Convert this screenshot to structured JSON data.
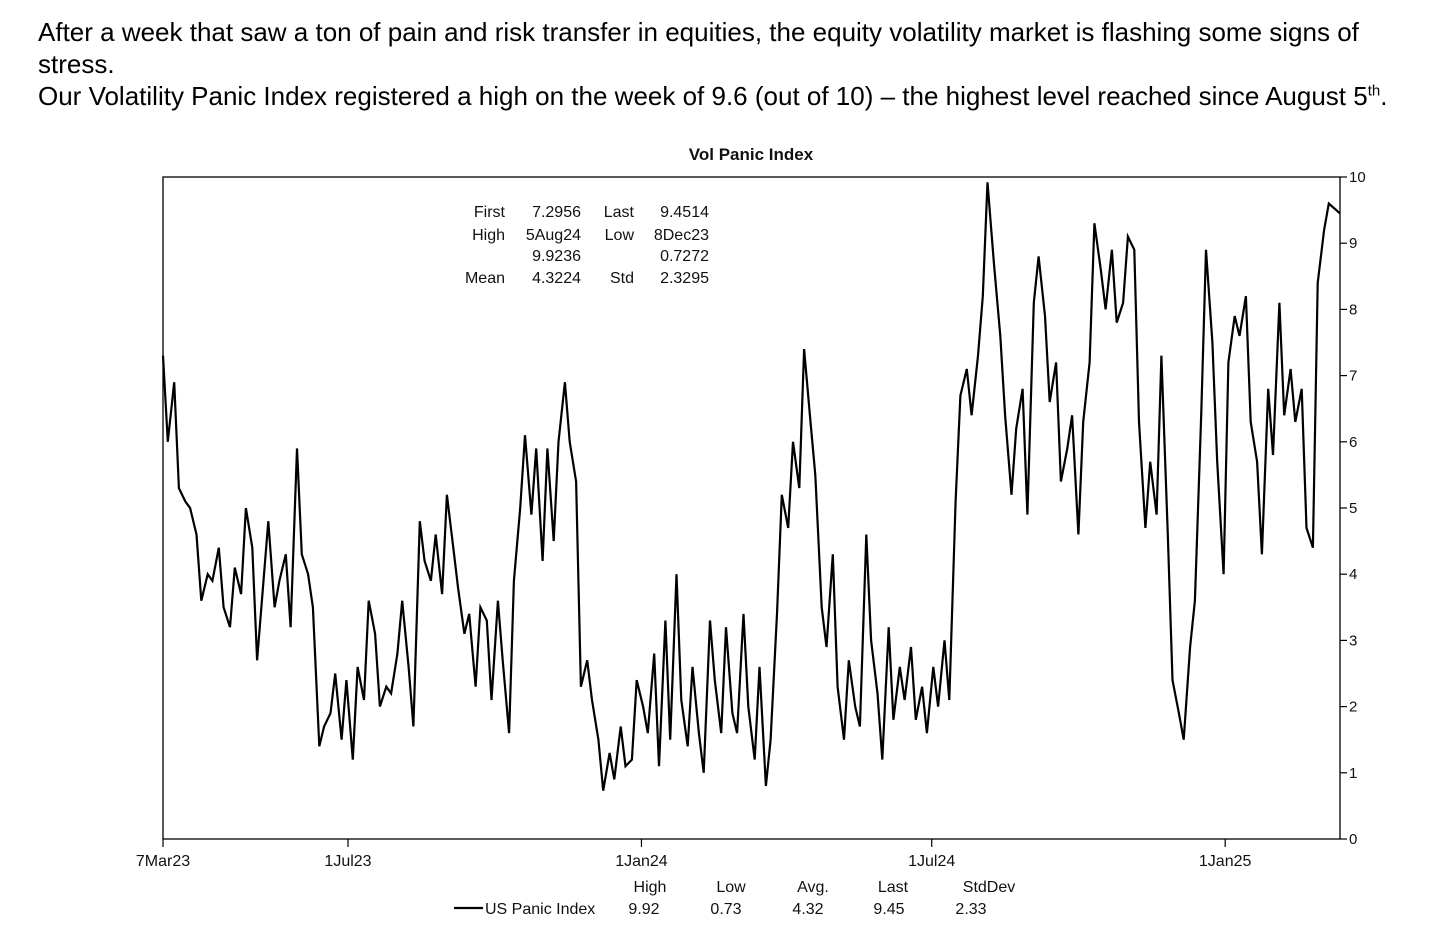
{
  "intro": {
    "paragraph1": "After a week that saw a ton of pain and risk transfer in equities, the equity volatility market is flashing some signs of stress.",
    "paragraph2_before_sup": "Our Volatility Panic Index registered a high on the week of 9.6 (out of 10) – the highest level reached since August 5",
    "paragraph2_sup": "th",
    "paragraph2_after_sup": "."
  },
  "chart_data": {
    "type": "line",
    "title": "Vol Panic Index",
    "ylim": [
      0,
      10
    ],
    "y_ticks": [
      "0",
      "1",
      "2",
      "3",
      "4",
      "5",
      "6",
      "7",
      "8",
      "9",
      "10"
    ],
    "y_axis_side": "right",
    "x_range": [
      "2023-03-07",
      "2025-03-14"
    ],
    "x_ticks": [
      {
        "label": "7Mar23",
        "date": "2023-03-07"
      },
      {
        "label": "1Jul23",
        "date": "2023-07-01"
      },
      {
        "label": "1Jan24",
        "date": "2024-01-01"
      },
      {
        "label": "1Jul24",
        "date": "2024-07-01"
      },
      {
        "label": "1Jan25",
        "date": "2025-01-01"
      }
    ],
    "grid": false,
    "stats_box": {
      "first_label": "First",
      "first_value": "7.2956",
      "last_label": "Last",
      "last_value": "9.4514",
      "high_label": "High",
      "high_date": "5Aug24",
      "high_value": "9.9236",
      "low_label": "Low",
      "low_date": "8Dec23",
      "low_value": "0.7272",
      "mean_label": "Mean",
      "mean_value": "4.3224",
      "std_label": "Std",
      "std_value": "2.3295"
    },
    "legend": {
      "series_label": "US Panic Index",
      "columns": [
        "High",
        "Low",
        "Avg.",
        "Last",
        "StdDev"
      ],
      "values": [
        "9.92",
        "0.73",
        "4.32",
        "9.45",
        "2.33"
      ]
    },
    "series": [
      {
        "name": "US Panic Index",
        "color": "#000000",
        "points": [
          [
            "2023-03-07",
            7.3
          ],
          [
            "2023-03-10",
            6.0
          ],
          [
            "2023-03-14",
            6.9
          ],
          [
            "2023-03-17",
            5.3
          ],
          [
            "2023-03-21",
            5.1
          ],
          [
            "2023-03-24",
            5.0
          ],
          [
            "2023-03-28",
            4.6
          ],
          [
            "2023-03-31",
            3.6
          ],
          [
            "2023-04-04",
            4.0
          ],
          [
            "2023-04-07",
            3.9
          ],
          [
            "2023-04-11",
            4.4
          ],
          [
            "2023-04-14",
            3.5
          ],
          [
            "2023-04-18",
            3.2
          ],
          [
            "2023-04-21",
            4.1
          ],
          [
            "2023-04-25",
            3.7
          ],
          [
            "2023-04-28",
            5.0
          ],
          [
            "2023-05-02",
            4.4
          ],
          [
            "2023-05-05",
            2.7
          ],
          [
            "2023-05-09",
            3.9
          ],
          [
            "2023-05-12",
            4.8
          ],
          [
            "2023-05-16",
            3.5
          ],
          [
            "2023-05-19",
            3.9
          ],
          [
            "2023-05-23",
            4.3
          ],
          [
            "2023-05-26",
            3.2
          ],
          [
            "2023-05-30",
            5.9
          ],
          [
            "2023-06-02",
            4.3
          ],
          [
            "2023-06-06",
            4.0
          ],
          [
            "2023-06-09",
            3.5
          ],
          [
            "2023-06-13",
            1.4
          ],
          [
            "2023-06-16",
            1.7
          ],
          [
            "2023-06-20",
            1.9
          ],
          [
            "2023-06-23",
            2.5
          ],
          [
            "2023-06-27",
            1.5
          ],
          [
            "2023-06-30",
            2.4
          ],
          [
            "2023-07-04",
            1.2
          ],
          [
            "2023-07-07",
            2.6
          ],
          [
            "2023-07-11",
            2.1
          ],
          [
            "2023-07-14",
            3.6
          ],
          [
            "2023-07-18",
            3.1
          ],
          [
            "2023-07-21",
            2.0
          ],
          [
            "2023-07-25",
            2.3
          ],
          [
            "2023-07-28",
            2.2
          ],
          [
            "2023-08-01",
            2.8
          ],
          [
            "2023-08-04",
            3.6
          ],
          [
            "2023-08-08",
            2.6
          ],
          [
            "2023-08-11",
            1.7
          ],
          [
            "2023-08-15",
            4.8
          ],
          [
            "2023-08-18",
            4.2
          ],
          [
            "2023-08-22",
            3.9
          ],
          [
            "2023-08-25",
            4.6
          ],
          [
            "2023-08-29",
            3.7
          ],
          [
            "2023-09-01",
            5.2
          ],
          [
            "2023-09-05",
            4.4
          ],
          [
            "2023-09-08",
            3.8
          ],
          [
            "2023-09-12",
            3.1
          ],
          [
            "2023-09-15",
            3.4
          ],
          [
            "2023-09-19",
            2.3
          ],
          [
            "2023-09-22",
            3.5
          ],
          [
            "2023-09-26",
            3.3
          ],
          [
            "2023-09-29",
            2.1
          ],
          [
            "2023-10-03",
            3.6
          ],
          [
            "2023-10-06",
            2.7
          ],
          [
            "2023-10-10",
            1.6
          ],
          [
            "2023-10-13",
            3.9
          ],
          [
            "2023-10-17",
            5.0
          ],
          [
            "2023-10-20",
            6.1
          ],
          [
            "2023-10-24",
            4.9
          ],
          [
            "2023-10-27",
            5.9
          ],
          [
            "2023-10-31",
            4.2
          ],
          [
            "2023-11-03",
            5.9
          ],
          [
            "2023-11-07",
            4.5
          ],
          [
            "2023-11-10",
            6.0
          ],
          [
            "2023-11-14",
            6.9
          ],
          [
            "2023-11-17",
            6.0
          ],
          [
            "2023-11-21",
            5.4
          ],
          [
            "2023-11-24",
            2.3
          ],
          [
            "2023-11-28",
            2.7
          ],
          [
            "2023-12-01",
            2.1
          ],
          [
            "2023-12-05",
            1.5
          ],
          [
            "2023-12-08",
            0.73
          ],
          [
            "2023-12-12",
            1.3
          ],
          [
            "2023-12-15",
            0.9
          ],
          [
            "2023-12-19",
            1.7
          ],
          [
            "2023-12-22",
            1.1
          ],
          [
            "2023-12-26",
            1.2
          ],
          [
            "2023-12-29",
            2.4
          ],
          [
            "2024-01-02",
            2.0
          ],
          [
            "2024-01-05",
            1.6
          ],
          [
            "2024-01-09",
            2.8
          ],
          [
            "2024-01-12",
            1.1
          ],
          [
            "2024-01-16",
            3.3
          ],
          [
            "2024-01-19",
            1.5
          ],
          [
            "2024-01-23",
            4.0
          ],
          [
            "2024-01-26",
            2.1
          ],
          [
            "2024-01-30",
            1.4
          ],
          [
            "2024-02-02",
            2.6
          ],
          [
            "2024-02-06",
            1.6
          ],
          [
            "2024-02-09",
            1.0
          ],
          [
            "2024-02-13",
            3.3
          ],
          [
            "2024-02-16",
            2.4
          ],
          [
            "2024-02-20",
            1.6
          ],
          [
            "2024-02-23",
            3.2
          ],
          [
            "2024-02-27",
            1.9
          ],
          [
            "2024-03-01",
            1.6
          ],
          [
            "2024-03-05",
            3.4
          ],
          [
            "2024-03-08",
            2.0
          ],
          [
            "2024-03-12",
            1.2
          ],
          [
            "2024-03-15",
            2.6
          ],
          [
            "2024-03-19",
            0.8
          ],
          [
            "2024-03-22",
            1.5
          ],
          [
            "2024-03-26",
            3.4
          ],
          [
            "2024-03-29",
            5.2
          ],
          [
            "2024-04-02",
            4.7
          ],
          [
            "2024-04-05",
            6.0
          ],
          [
            "2024-04-09",
            5.3
          ],
          [
            "2024-04-12",
            7.4
          ],
          [
            "2024-04-16",
            6.3
          ],
          [
            "2024-04-19",
            5.5
          ],
          [
            "2024-04-23",
            3.5
          ],
          [
            "2024-04-26",
            2.9
          ],
          [
            "2024-04-30",
            4.3
          ],
          [
            "2024-05-03",
            2.3
          ],
          [
            "2024-05-07",
            1.5
          ],
          [
            "2024-05-10",
            2.7
          ],
          [
            "2024-05-14",
            2.0
          ],
          [
            "2024-05-17",
            1.7
          ],
          [
            "2024-05-21",
            4.6
          ],
          [
            "2024-05-24",
            3.0
          ],
          [
            "2024-05-28",
            2.2
          ],
          [
            "2024-05-31",
            1.2
          ],
          [
            "2024-06-04",
            3.2
          ],
          [
            "2024-06-07",
            1.8
          ],
          [
            "2024-06-11",
            2.6
          ],
          [
            "2024-06-14",
            2.1
          ],
          [
            "2024-06-18",
            2.9
          ],
          [
            "2024-06-21",
            1.8
          ],
          [
            "2024-06-25",
            2.3
          ],
          [
            "2024-06-28",
            1.6
          ],
          [
            "2024-07-02",
            2.6
          ],
          [
            "2024-07-05",
            2.0
          ],
          [
            "2024-07-09",
            3.0
          ],
          [
            "2024-07-12",
            2.1
          ],
          [
            "2024-07-16",
            5.1
          ],
          [
            "2024-07-19",
            6.7
          ],
          [
            "2024-07-23",
            7.1
          ],
          [
            "2024-07-26",
            6.4
          ],
          [
            "2024-07-30",
            7.3
          ],
          [
            "2024-08-02",
            8.2
          ],
          [
            "2024-08-05",
            9.92
          ],
          [
            "2024-08-09",
            8.7
          ],
          [
            "2024-08-13",
            7.6
          ],
          [
            "2024-08-16",
            6.4
          ],
          [
            "2024-08-20",
            5.2
          ],
          [
            "2024-08-23",
            6.2
          ],
          [
            "2024-08-27",
            6.8
          ],
          [
            "2024-08-30",
            4.9
          ],
          [
            "2024-09-03",
            8.1
          ],
          [
            "2024-09-06",
            8.8
          ],
          [
            "2024-09-10",
            7.9
          ],
          [
            "2024-09-13",
            6.6
          ],
          [
            "2024-09-17",
            7.2
          ],
          [
            "2024-09-20",
            5.4
          ],
          [
            "2024-09-24",
            5.9
          ],
          [
            "2024-09-27",
            6.4
          ],
          [
            "2024-10-01",
            4.6
          ],
          [
            "2024-10-04",
            6.3
          ],
          [
            "2024-10-08",
            7.2
          ],
          [
            "2024-10-11",
            9.3
          ],
          [
            "2024-10-15",
            8.6
          ],
          [
            "2024-10-18",
            8.0
          ],
          [
            "2024-10-22",
            8.9
          ],
          [
            "2024-10-25",
            7.8
          ],
          [
            "2024-10-29",
            8.1
          ],
          [
            "2024-11-01",
            9.1
          ],
          [
            "2024-11-05",
            8.9
          ],
          [
            "2024-11-08",
            6.3
          ],
          [
            "2024-11-12",
            4.7
          ],
          [
            "2024-11-15",
            5.7
          ],
          [
            "2024-11-19",
            4.9
          ],
          [
            "2024-11-22",
            7.3
          ],
          [
            "2024-11-26",
            4.6
          ],
          [
            "2024-11-29",
            2.4
          ],
          [
            "2024-12-03",
            1.9
          ],
          [
            "2024-12-06",
            1.5
          ],
          [
            "2024-12-10",
            2.9
          ],
          [
            "2024-12-13",
            3.6
          ],
          [
            "2024-12-17",
            6.4
          ],
          [
            "2024-12-20",
            8.9
          ],
          [
            "2024-12-24",
            7.5
          ],
          [
            "2024-12-27",
            5.7
          ],
          [
            "2024-12-31",
            4.0
          ],
          [
            "2025-01-03",
            7.2
          ],
          [
            "2025-01-07",
            7.9
          ],
          [
            "2025-01-10",
            7.6
          ],
          [
            "2025-01-14",
            8.2
          ],
          [
            "2025-01-17",
            6.3
          ],
          [
            "2025-01-21",
            5.7
          ],
          [
            "2025-01-24",
            4.3
          ],
          [
            "2025-01-28",
            6.8
          ],
          [
            "2025-01-31",
            5.8
          ],
          [
            "2025-02-04",
            8.1
          ],
          [
            "2025-02-07",
            6.4
          ],
          [
            "2025-02-11",
            7.1
          ],
          [
            "2025-02-14",
            6.3
          ],
          [
            "2025-02-18",
            6.8
          ],
          [
            "2025-02-21",
            4.7
          ],
          [
            "2025-02-25",
            4.4
          ],
          [
            "2025-02-28",
            8.4
          ],
          [
            "2025-03-04",
            9.2
          ],
          [
            "2025-03-07",
            9.6
          ],
          [
            "2025-03-14",
            9.45
          ]
        ]
      }
    ]
  }
}
